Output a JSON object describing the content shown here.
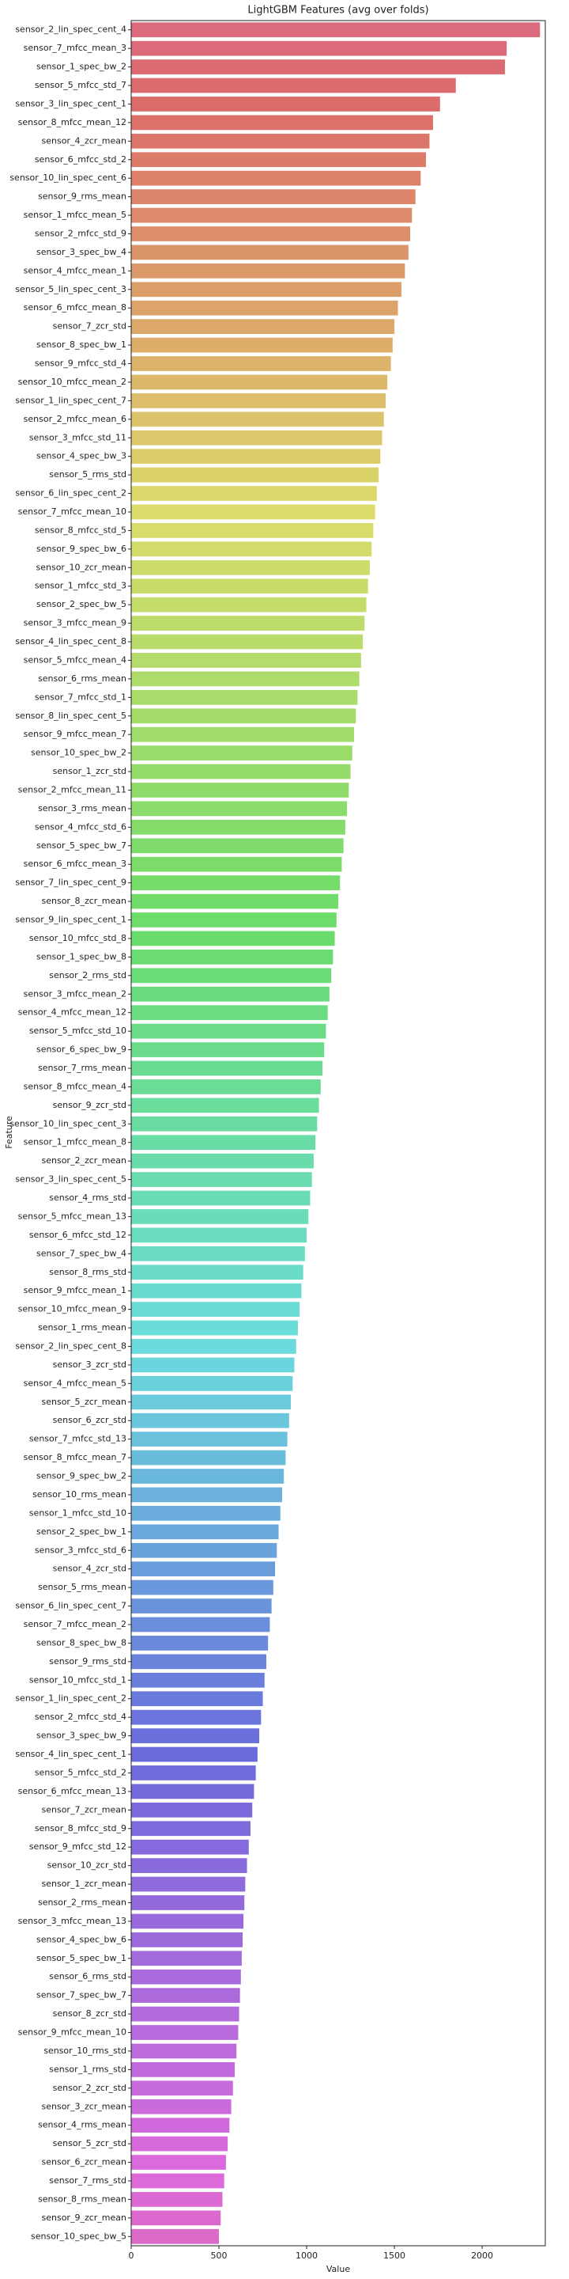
{
  "chart_data": {
    "type": "barh",
    "title": "LightGBM Features (avg over folds)",
    "x_label": "Value",
    "y_label": "Feature",
    "xlim": [
      0,
      2360
    ],
    "xticks": [
      0,
      500,
      1000,
      1500,
      2000
    ],
    "grid": false,
    "palette": "husl",
    "categories": [
      "sensor_2_lin_spec_cent_4",
      "sensor_7_mfcc_mean_3",
      "sensor_1_spec_bw_2",
      "sensor_5_mfcc_std_7",
      "sensor_3_lin_spec_cent_1",
      "sensor_8_mfcc_mean_12",
      "sensor_4_zcr_mean",
      "sensor_6_mfcc_std_2",
      "sensor_10_lin_spec_cent_6",
      "sensor_9_rms_mean",
      "sensor_1_mfcc_mean_5",
      "sensor_2_mfcc_std_9",
      "sensor_3_spec_bw_4",
      "sensor_4_mfcc_mean_1",
      "sensor_5_lin_spec_cent_3",
      "sensor_6_mfcc_mean_8",
      "sensor_7_zcr_std",
      "sensor_8_spec_bw_1",
      "sensor_9_mfcc_std_4",
      "sensor_10_mfcc_mean_2",
      "sensor_1_lin_spec_cent_7",
      "sensor_2_mfcc_mean_6",
      "sensor_3_mfcc_std_11",
      "sensor_4_spec_bw_3",
      "sensor_5_rms_std",
      "sensor_6_lin_spec_cent_2",
      "sensor_7_mfcc_mean_10",
      "sensor_8_mfcc_std_5",
      "sensor_9_spec_bw_6",
      "sensor_10_zcr_mean",
      "sensor_1_mfcc_std_3",
      "sensor_2_spec_bw_5",
      "sensor_3_mfcc_mean_9",
      "sensor_4_lin_spec_cent_8",
      "sensor_5_mfcc_mean_4",
      "sensor_6_rms_mean",
      "sensor_7_mfcc_std_1",
      "sensor_8_lin_spec_cent_5",
      "sensor_9_mfcc_mean_7",
      "sensor_10_spec_bw_2",
      "sensor_1_zcr_std",
      "sensor_2_mfcc_mean_11",
      "sensor_3_rms_mean",
      "sensor_4_mfcc_std_6",
      "sensor_5_spec_bw_7",
      "sensor_6_mfcc_mean_3",
      "sensor_7_lin_spec_cent_9",
      "sensor_8_zcr_mean",
      "sensor_9_lin_spec_cent_1",
      "sensor_10_mfcc_std_8",
      "sensor_1_spec_bw_8",
      "sensor_2_rms_std",
      "sensor_3_mfcc_mean_2",
      "sensor_4_mfcc_mean_12",
      "sensor_5_mfcc_std_10",
      "sensor_6_spec_bw_9",
      "sensor_7_rms_mean",
      "sensor_8_mfcc_mean_4",
      "sensor_9_zcr_std",
      "sensor_10_lin_spec_cent_3",
      "sensor_1_mfcc_mean_8",
      "sensor_2_zcr_mean",
      "sensor_3_lin_spec_cent_5",
      "sensor_4_rms_std",
      "sensor_5_mfcc_mean_13",
      "sensor_6_mfcc_std_12",
      "sensor_7_spec_bw_4",
      "sensor_8_rms_std",
      "sensor_9_mfcc_mean_1",
      "sensor_10_mfcc_mean_9",
      "sensor_1_rms_mean",
      "sensor_2_lin_spec_cent_8",
      "sensor_3_zcr_std",
      "sensor_4_mfcc_mean_5",
      "sensor_5_zcr_mean",
      "sensor_6_zcr_std",
      "sensor_7_mfcc_std_13",
      "sensor_8_mfcc_mean_7",
      "sensor_9_spec_bw_2",
      "sensor_10_rms_mean",
      "sensor_1_mfcc_std_10",
      "sensor_2_spec_bw_1",
      "sensor_3_mfcc_std_6",
      "sensor_4_zcr_std",
      "sensor_5_rms_mean",
      "sensor_6_lin_spec_cent_7",
      "sensor_7_mfcc_mean_2",
      "sensor_8_spec_bw_8",
      "sensor_9_rms_std",
      "sensor_10_mfcc_std_1",
      "sensor_1_lin_spec_cent_2",
      "sensor_2_mfcc_std_4",
      "sensor_3_spec_bw_9",
      "sensor_4_lin_spec_cent_1",
      "sensor_5_mfcc_std_2",
      "sensor_6_mfcc_mean_13",
      "sensor_7_zcr_mean",
      "sensor_8_mfcc_std_9",
      "sensor_9_mfcc_std_12",
      "sensor_10_zcr_std",
      "sensor_1_zcr_mean",
      "sensor_2_rms_mean",
      "sensor_3_mfcc_mean_13",
      "sensor_4_spec_bw_6",
      "sensor_5_spec_bw_1",
      "sensor_6_rms_std",
      "sensor_7_spec_bw_7",
      "sensor_8_zcr_std",
      "sensor_9_mfcc_mean_10",
      "sensor_10_rms_std",
      "sensor_1_rms_std",
      "sensor_2_zcr_std",
      "sensor_3_zcr_mean",
      "sensor_4_rms_mean",
      "sensor_5_zcr_std",
      "sensor_6_zcr_mean",
      "sensor_7_rms_std",
      "sensor_8_rms_mean",
      "sensor_9_zcr_mean",
      "sensor_10_spec_bw_5"
    ],
    "values": [
      2330,
      2140,
      2130,
      1850,
      1760,
      1720,
      1700,
      1680,
      1650,
      1620,
      1600,
      1590,
      1580,
      1560,
      1540,
      1520,
      1500,
      1490,
      1480,
      1460,
      1450,
      1440,
      1430,
      1420,
      1410,
      1400,
      1390,
      1380,
      1370,
      1360,
      1350,
      1340,
      1330,
      1320,
      1310,
      1300,
      1290,
      1280,
      1270,
      1260,
      1250,
      1240,
      1230,
      1220,
      1210,
      1200,
      1190,
      1180,
      1170,
      1160,
      1150,
      1140,
      1130,
      1120,
      1110,
      1100,
      1090,
      1080,
      1070,
      1060,
      1050,
      1040,
      1030,
      1020,
      1010,
      1000,
      990,
      980,
      970,
      960,
      950,
      940,
      930,
      920,
      910,
      900,
      890,
      880,
      870,
      860,
      850,
      840,
      830,
      820,
      810,
      800,
      790,
      780,
      770,
      760,
      750,
      740,
      730,
      720,
      710,
      700,
      690,
      680,
      670,
      660,
      650,
      645,
      640,
      635,
      630,
      625,
      620,
      615,
      610,
      600,
      590,
      580,
      570,
      560,
      550,
      540,
      530,
      520,
      510,
      500
    ]
  }
}
